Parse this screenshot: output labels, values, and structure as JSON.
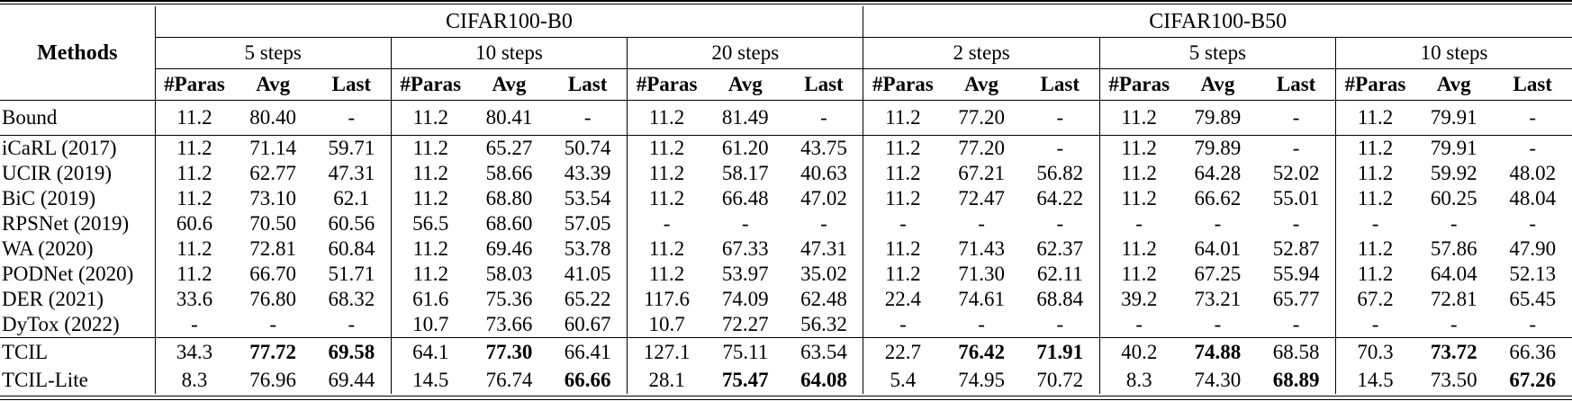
{
  "table": {
    "corner_label": "Methods",
    "datasets": [
      {
        "label": "CIFAR100-B0",
        "steps": [
          "5 steps",
          "10 steps",
          "20 steps"
        ]
      },
      {
        "label": "CIFAR100-B50",
        "steps": [
          "2 steps",
          "5 steps",
          "10 steps"
        ]
      }
    ],
    "metrics": [
      "#Paras",
      "Avg",
      "Last"
    ],
    "rows": [
      {
        "method": "Bound",
        "section": "bound",
        "rule_after": true,
        "cells": [
          "11.2",
          "80.40",
          "-",
          "11.2",
          "80.41",
          "-",
          "11.2",
          "81.49",
          "-",
          "11.2",
          "77.20",
          "-",
          "11.2",
          "79.89",
          "-",
          "11.2",
          "79.91",
          "-"
        ],
        "bold": []
      },
      {
        "method": "iCaRL (2017)",
        "section": "baseline",
        "rule_after": false,
        "cells": [
          "11.2",
          "71.14",
          "59.71",
          "11.2",
          "65.27",
          "50.74",
          "11.2",
          "61.20",
          "43.75",
          "11.2",
          "77.20",
          "-",
          "11.2",
          "79.89",
          "-",
          "11.2",
          "79.91",
          "-"
        ],
        "bold": []
      },
      {
        "method": "UCIR (2019)",
        "section": "baseline",
        "rule_after": false,
        "cells": [
          "11.2",
          "62.77",
          "47.31",
          "11.2",
          "58.66",
          "43.39",
          "11.2",
          "58.17",
          "40.63",
          "11.2",
          "67.21",
          "56.82",
          "11.2",
          "64.28",
          "52.02",
          "11.2",
          "59.92",
          "48.02"
        ],
        "bold": []
      },
      {
        "method": "BiC (2019)",
        "section": "baseline",
        "rule_after": false,
        "cells": [
          "11.2",
          "73.10",
          "62.1",
          "11.2",
          "68.80",
          "53.54",
          "11.2",
          "66.48",
          "47.02",
          "11.2",
          "72.47",
          "64.22",
          "11.2",
          "66.62",
          "55.01",
          "11.2",
          "60.25",
          "48.04"
        ],
        "bold": []
      },
      {
        "method": "RPSNet (2019)",
        "section": "baseline",
        "rule_after": false,
        "cells": [
          "60.6",
          "70.50",
          "60.56",
          "56.5",
          "68.60",
          "57.05",
          "-",
          "-",
          "-",
          "-",
          "-",
          "-",
          "-",
          "-",
          "-",
          "-",
          "-",
          "-"
        ],
        "bold": []
      },
      {
        "method": "WA (2020)",
        "section": "baseline",
        "rule_after": false,
        "cells": [
          "11.2",
          "72.81",
          "60.84",
          "11.2",
          "69.46",
          "53.78",
          "11.2",
          "67.33",
          "47.31",
          "11.2",
          "71.43",
          "62.37",
          "11.2",
          "64.01",
          "52.87",
          "11.2",
          "57.86",
          "47.90"
        ],
        "bold": []
      },
      {
        "method": "PODNet (2020)",
        "section": "baseline",
        "rule_after": false,
        "cells": [
          "11.2",
          "66.70",
          "51.71",
          "11.2",
          "58.03",
          "41.05",
          "11.2",
          "53.97",
          "35.02",
          "11.2",
          "71.30",
          "62.11",
          "11.2",
          "67.25",
          "55.94",
          "11.2",
          "64.04",
          "52.13"
        ],
        "bold": []
      },
      {
        "method": "DER (2021)",
        "section": "baseline",
        "rule_after": false,
        "cells": [
          "33.6",
          "76.80",
          "68.32",
          "61.6",
          "75.36",
          "65.22",
          "117.6",
          "74.09",
          "62.48",
          "22.4",
          "74.61",
          "68.84",
          "39.2",
          "73.21",
          "65.77",
          "67.2",
          "72.81",
          "65.45"
        ],
        "bold": []
      },
      {
        "method": "DyTox (2022)",
        "section": "baseline",
        "rule_after": true,
        "cells": [
          "-",
          "-",
          "-",
          "10.7",
          "73.66",
          "60.67",
          "10.7",
          "72.27",
          "56.32",
          "-",
          "-",
          "-",
          "-",
          "-",
          "-",
          "-",
          "-",
          "-"
        ],
        "bold": []
      },
      {
        "method": "TCIL",
        "section": "ours",
        "rule_after": false,
        "cells": [
          "34.3",
          "77.72",
          "69.58",
          "64.1",
          "77.30",
          "66.41",
          "127.1",
          "75.11",
          "63.54",
          "22.7",
          "76.42",
          "71.91",
          "40.2",
          "74.88",
          "68.58",
          "70.3",
          "73.72",
          "66.36"
        ],
        "bold": [
          1,
          2,
          4,
          10,
          11,
          13,
          16
        ]
      },
      {
        "method": "TCIL-Lite",
        "section": "ours",
        "rule_after": false,
        "cells": [
          "8.3",
          "76.96",
          "69.44",
          "14.5",
          "76.74",
          "66.66",
          "28.1",
          "75.47",
          "64.08",
          "5.4",
          "74.95",
          "70.72",
          "8.3",
          "74.30",
          "68.89",
          "14.5",
          "73.50",
          "67.26"
        ],
        "bold": [
          5,
          7,
          8,
          14,
          17
        ]
      }
    ],
    "colors": {
      "text": "#000000",
      "background": "#ffffff",
      "rule": "#000000"
    }
  }
}
